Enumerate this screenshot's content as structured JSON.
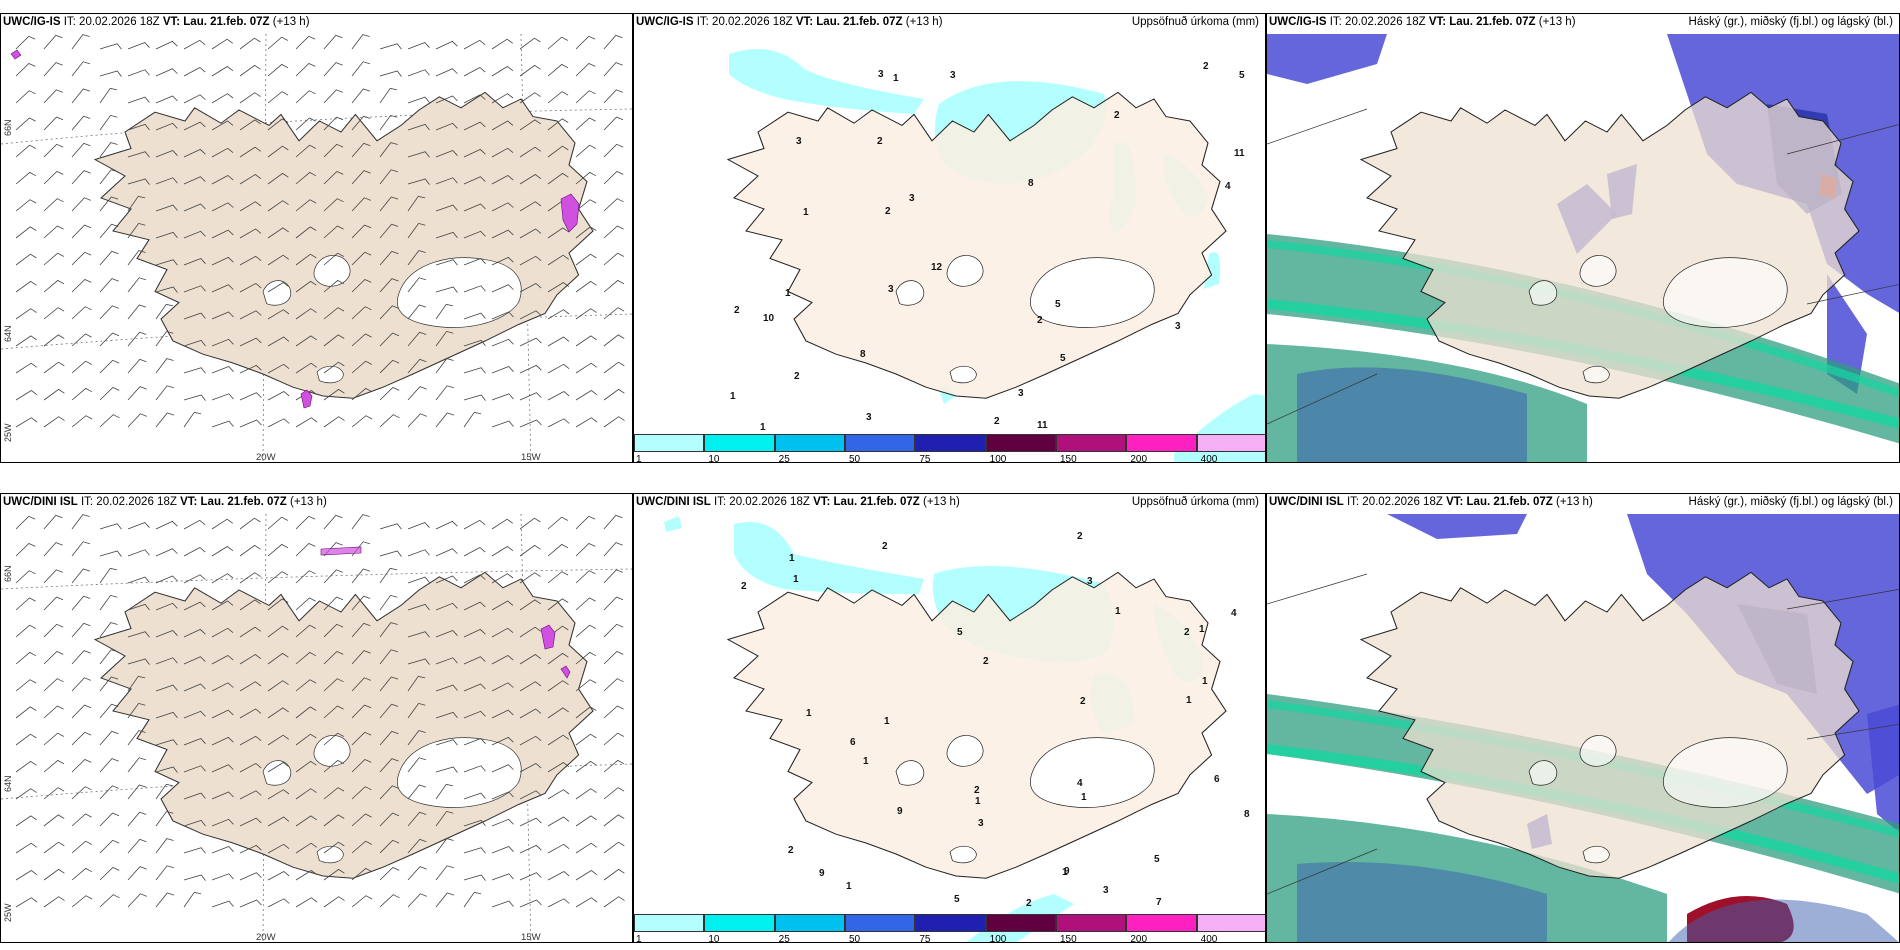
{
  "panels": [
    {
      "id": "p1",
      "model": "UWC/IG-IS",
      "it_label": "IT:",
      "it": "20.02.2026 18Z",
      "vt_label": "VT:",
      "vt": "Lau. 21.feb. 07Z",
      "lead": "(+13 h)",
      "right": ""
    },
    {
      "id": "p2",
      "model": "UWC/IG-IS",
      "it_label": "IT:",
      "it": "20.02.2026 18Z",
      "vt_label": "VT:",
      "vt": "Lau. 21.feb. 07Z",
      "lead": "(+13 h)",
      "right": "Uppsöfnuð úrkoma (mm)"
    },
    {
      "id": "p3",
      "model": "UWC/IG-IS",
      "it_label": "IT:",
      "it": "20.02.2026 18Z",
      "vt_label": "VT:",
      "vt": "Lau. 21.feb. 07Z",
      "lead": "(+13 h)",
      "right": "Háský (gr.), miðský (fj.bl.) og lágský (bl.)"
    },
    {
      "id": "p4",
      "model": "UWC/DINI ISL",
      "it_label": "IT:",
      "it": "20.02.2026 18Z",
      "vt_label": "VT:",
      "vt": "Lau. 21.feb. 07Z",
      "lead": "(+13 h)",
      "right": ""
    },
    {
      "id": "p5",
      "model": "UWC/DINI ISL",
      "it_label": "IT:",
      "it": "20.02.2026 18Z",
      "vt_label": "VT:",
      "vt": "Lau. 21.feb. 07Z",
      "lead": "(+13 h)",
      "right": "Uppsöfnuð úrkoma (mm)"
    },
    {
      "id": "p6",
      "model": "UWC/DINI ISL",
      "it_label": "IT:",
      "it": "20.02.2026 18Z",
      "vt_label": "VT:",
      "vt": "Lau. 21.feb. 07Z",
      "lead": "(+13 h)",
      "right": "Háský (gr.), miðský (fj.bl.) og lágský (bl.)"
    }
  ],
  "grid_labels": {
    "lon_20w": "20W",
    "lon_15w": "15W",
    "lat_66n": "66N",
    "lat_64n": "64N",
    "lat_25w": "25W"
  },
  "colorbar": {
    "ticks": [
      "1",
      "10",
      "25",
      "50",
      "75",
      "100",
      "150",
      "200",
      "400"
    ],
    "colors": [
      "#b3ffff",
      "#00f0f0",
      "#00c0f0",
      "#3366e6",
      "#2020b0",
      "#600040",
      "#b0107a",
      "#ff20c0",
      "#f5b0f5"
    ]
  },
  "precip_labels_top": [
    "10",
    "11",
    "8",
    "2",
    "4",
    "12",
    "5",
    "11",
    "5",
    "8",
    "5",
    "2",
    "1",
    "1",
    "2",
    "3",
    "3",
    "2",
    "1",
    "3",
    "3",
    "2",
    "2",
    "2",
    "3",
    "3",
    "3",
    "3",
    "2",
    "1",
    "1"
  ],
  "precip_labels_bottom": [
    "1",
    "1",
    "1",
    "2",
    "7",
    "9",
    "3",
    "4",
    "6",
    "6",
    "9",
    "9",
    "8",
    "2",
    "1",
    "2",
    "2",
    "1",
    "3",
    "4",
    "5",
    "2",
    "5",
    "2",
    "5",
    "1",
    "2",
    "1",
    "2",
    "1",
    "1",
    "2",
    "1",
    "1",
    "1",
    "1",
    "3"
  ],
  "colors": {
    "land": "#ede0d0",
    "precip_light": "#b3ffff",
    "cloud_high": "#2f9e80",
    "cloud_high_edge": "#14d6a0",
    "cloud_mid": "#4a4ad6",
    "cloud_low": "#1e2a9c",
    "cloud_dark": "#a0102a",
    "glacier": "#ffffff"
  }
}
